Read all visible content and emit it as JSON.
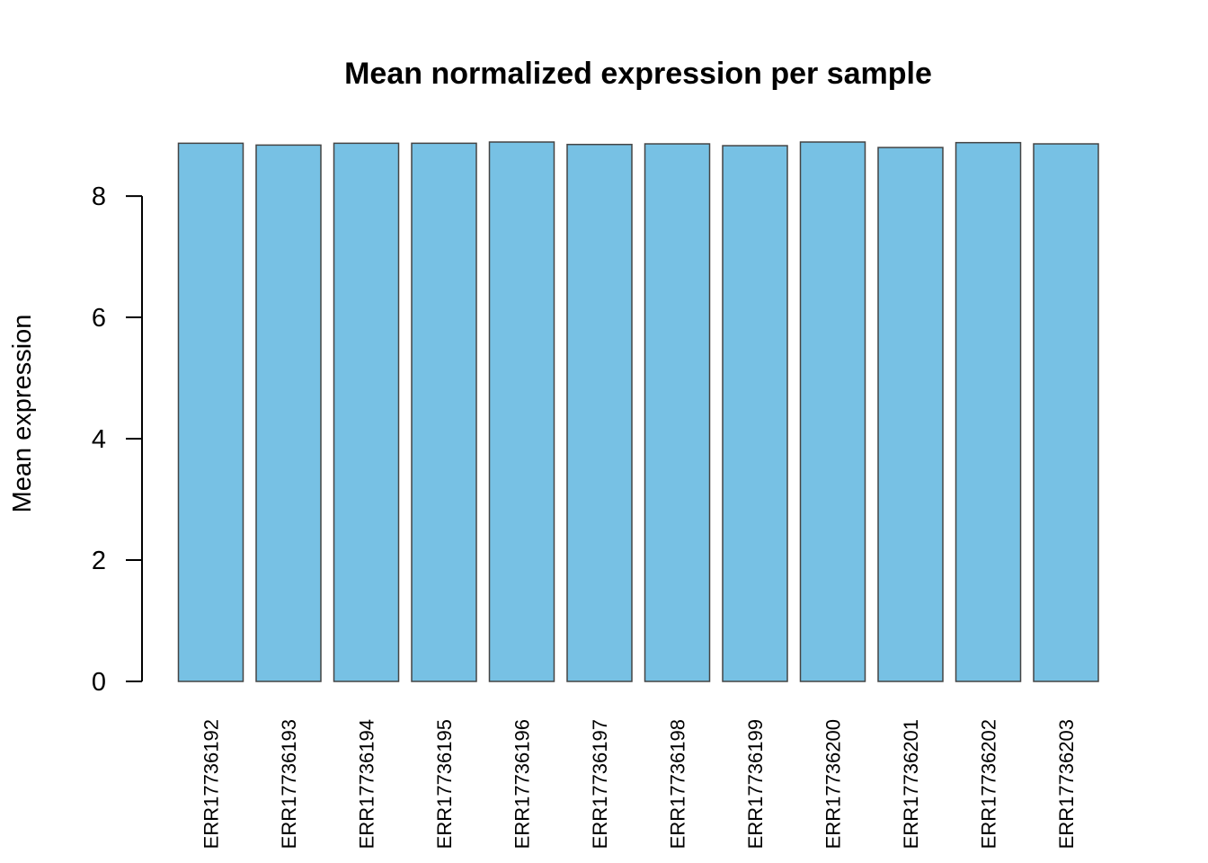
{
  "chart_data": {
    "type": "bar",
    "title": "Mean normalized expression per sample",
    "xlabel": "",
    "ylabel": "Mean expression",
    "categories": [
      "ERR17736192",
      "ERR17736193",
      "ERR17736194",
      "ERR17736195",
      "ERR17736196",
      "ERR17736197",
      "ERR17736198",
      "ERR17736199",
      "ERR17736200",
      "ERR17736201",
      "ERR17736202",
      "ERR17736203"
    ],
    "values": [
      8.87,
      8.84,
      8.87,
      8.87,
      8.89,
      8.85,
      8.86,
      8.83,
      8.89,
      8.8,
      8.88,
      8.86
    ],
    "ylim": [
      0,
      8.89
    ],
    "yticks": [
      0,
      2,
      4,
      6,
      8
    ],
    "bar_color": "#77C1E4",
    "bar_border_color": "#444444",
    "grid": false,
    "legend": "none"
  }
}
